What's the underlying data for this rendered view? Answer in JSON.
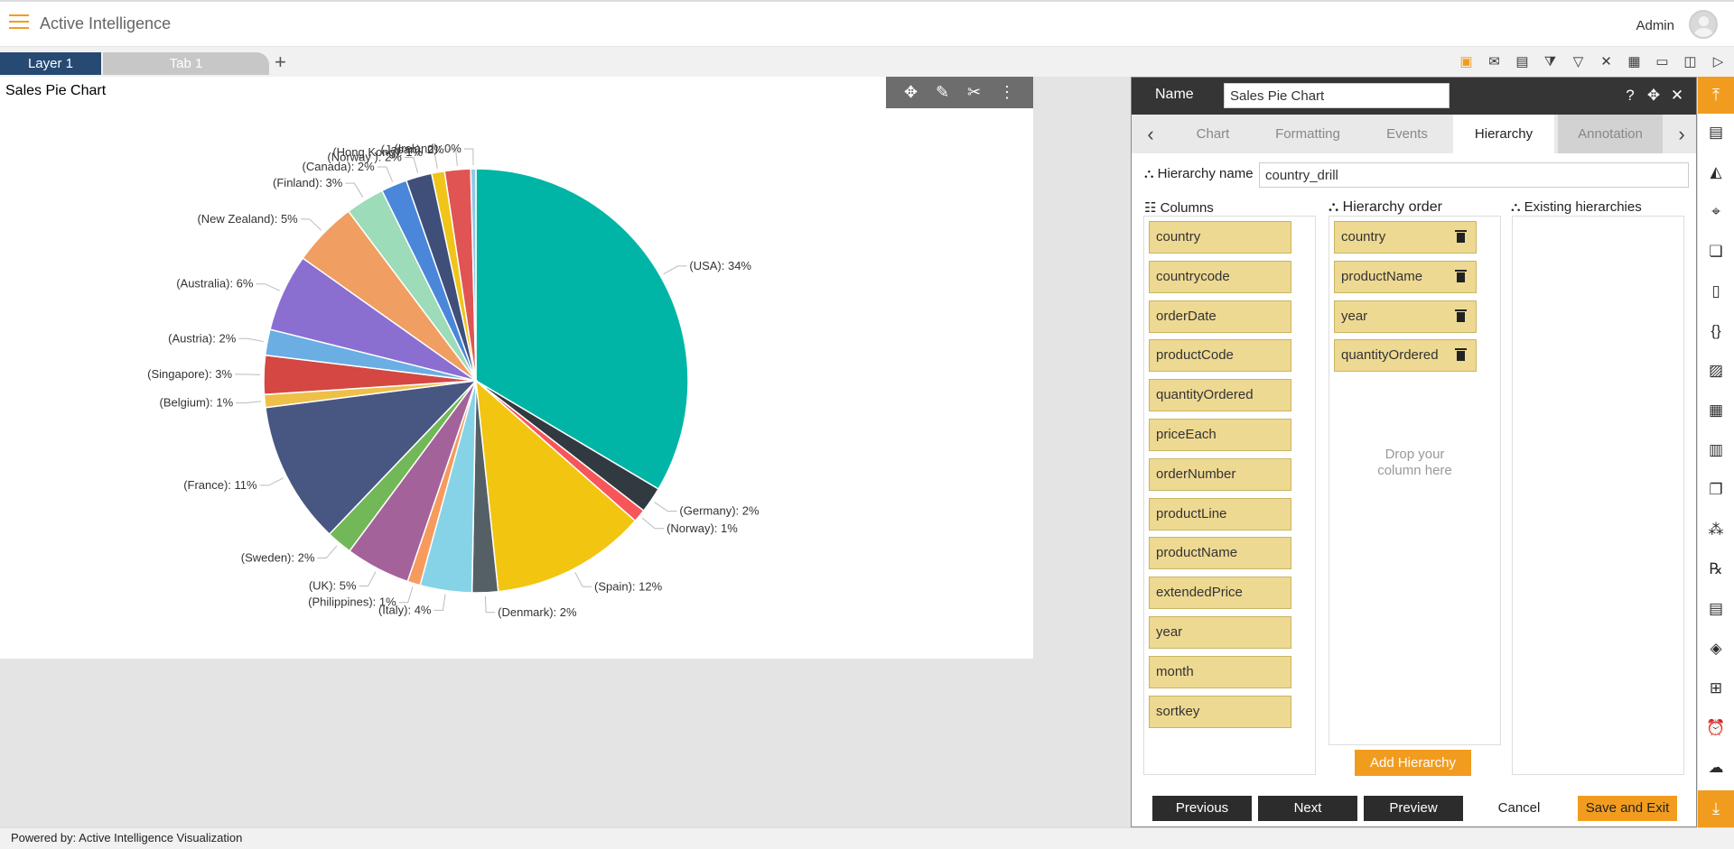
{
  "header": {
    "app_title": "Active Intelligence",
    "user": "Admin"
  },
  "tabs": {
    "layer": "Layer 1",
    "tab": "Tab 1",
    "add": "+"
  },
  "toolbar": {
    "icons": [
      "save-icon",
      "mail-icon",
      "comment-icon",
      "clear-filter-icon",
      "filter-icon",
      "tools-icon",
      "grid-icon",
      "embed-icon",
      "devices-icon",
      "play-icon"
    ]
  },
  "chart": {
    "title": "Sales Pie Chart"
  },
  "chart_data": {
    "type": "pie",
    "title": "Sales Pie Chart",
    "labels": [
      "(USA): 34%",
      "(Germany): 2%",
      "(Norway): 1%",
      "(Spain): 12%",
      "(Denmark): 2%",
      "(Italy): 4%",
      "(Philippines): 1%",
      "(UK): 5%",
      "(Sweden): 2%",
      "(France): 11%",
      "(Belgium): 1%",
      "(Singapore): 3%",
      "(Austria): 2%",
      "(Australia): 6%",
      "(New Zealand): 5%",
      "(Finland): 3%",
      "(Canada): 2%",
      "(Norway ): 2%",
      "(Hong Kong): 1%",
      "(Japan): 2%",
      "(Ireland): 0%"
    ],
    "categories": [
      "USA",
      "Germany",
      "Norway",
      "Spain",
      "Denmark",
      "Italy",
      "Philippines",
      "UK",
      "Sweden",
      "France",
      "Belgium",
      "Singapore",
      "Austria",
      "Australia",
      "New Zealand",
      "Finland",
      "Canada",
      "Norway ",
      "Hong Kong",
      "Japan",
      "Ireland"
    ],
    "values": [
      34,
      2,
      1,
      12,
      2,
      4,
      1,
      5,
      2,
      11,
      1,
      3,
      2,
      6,
      5,
      3,
      2,
      2,
      1,
      2,
      0.4
    ],
    "colors": [
      "#00b5a5",
      "#313a40",
      "#f6565a",
      "#f2c511",
      "#555f66",
      "#86d3e8",
      "#f69a5e",
      "#a4629a",
      "#72b858",
      "#485682",
      "#eec04a",
      "#d44743",
      "#6aaee3",
      "#8a6fd1",
      "#f09e61",
      "#9cdcb8",
      "#4a86d9",
      "#3f4f7a",
      "#f0c419",
      "#e05454",
      "#8ec9e8"
    ],
    "start_slice_extra": [
      {
        "color": "#3ea86b"
      }
    ]
  },
  "panel": {
    "name_label": "Name",
    "name_value": "Sales Pie Chart",
    "tabs": [
      "Chart",
      "Formatting",
      "Events",
      "Hierarchy",
      "Annotation"
    ],
    "active_tab": "Hierarchy",
    "hierarchy_name_label": "Hierarchy name",
    "hierarchy_name_value": "country_drill",
    "columns_title": "Columns",
    "order_title": "Hierarchy order",
    "existing_title": "Existing hierarchies",
    "columns": [
      "country",
      "countrycode",
      "orderDate",
      "productCode",
      "quantityOrdered",
      "priceEach",
      "orderNumber",
      "productLine",
      "productName",
      "extendedPrice",
      "year",
      "month",
      "sortkey"
    ],
    "order": [
      "country",
      "productName",
      "year",
      "quantityOrdered"
    ],
    "drop_hint_1": "Drop your",
    "drop_hint_2": "column here",
    "add_hierarchy": "Add Hierarchy",
    "buttons": {
      "previous": "Previous",
      "next": "Next",
      "preview": "Preview",
      "cancel": "Cancel",
      "save": "Save and Exit"
    }
  },
  "footer": {
    "text": "Powered by: Active Intelligence Visualization"
  }
}
